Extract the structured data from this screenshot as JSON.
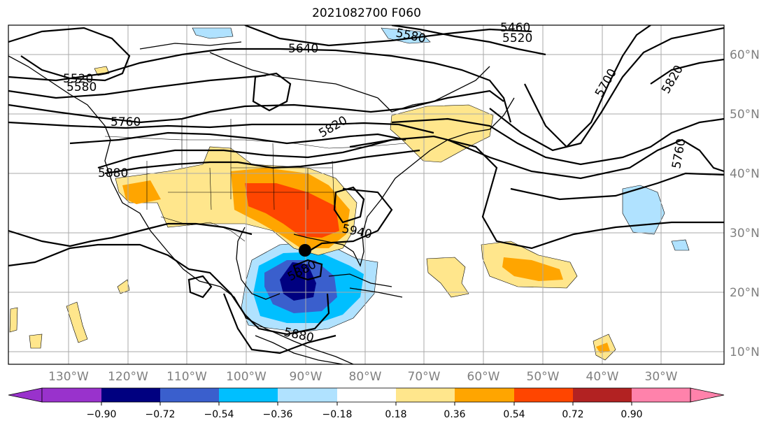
{
  "title": "2021082700 F060",
  "lon_labels": [
    "130°W",
    "120°W",
    "110°W",
    "100°W",
    "90°W",
    "80°W",
    "70°W",
    "60°W",
    "50°W",
    "40°W",
    "30°W"
  ],
  "lat_labels": [
    "60°N",
    "50°N",
    "40°N",
    "30°N",
    "20°N",
    "10°N"
  ],
  "contour_labels": [
    "5460",
    "5520",
    "5580",
    "5640",
    "5700",
    "5760",
    "5820",
    "5880",
    "5940"
  ],
  "colorbar": {
    "ticks": [
      "−0.90",
      "−0.72",
      "−0.54",
      "−0.36",
      "−0.18",
      "0.18",
      "0.36",
      "0.54",
      "0.72",
      "0.90"
    ],
    "colors": [
      "#9932cc",
      "#000080",
      "#3a5fcd",
      "#00bfff",
      "#b0e2ff",
      "#ffffff",
      "#ffe68c",
      "#ffa500",
      "#ff4500",
      "#b22222",
      "#ff82ab"
    ]
  },
  "storm_marker": {
    "lon": -90.2,
    "lat": 27.0
  }
}
